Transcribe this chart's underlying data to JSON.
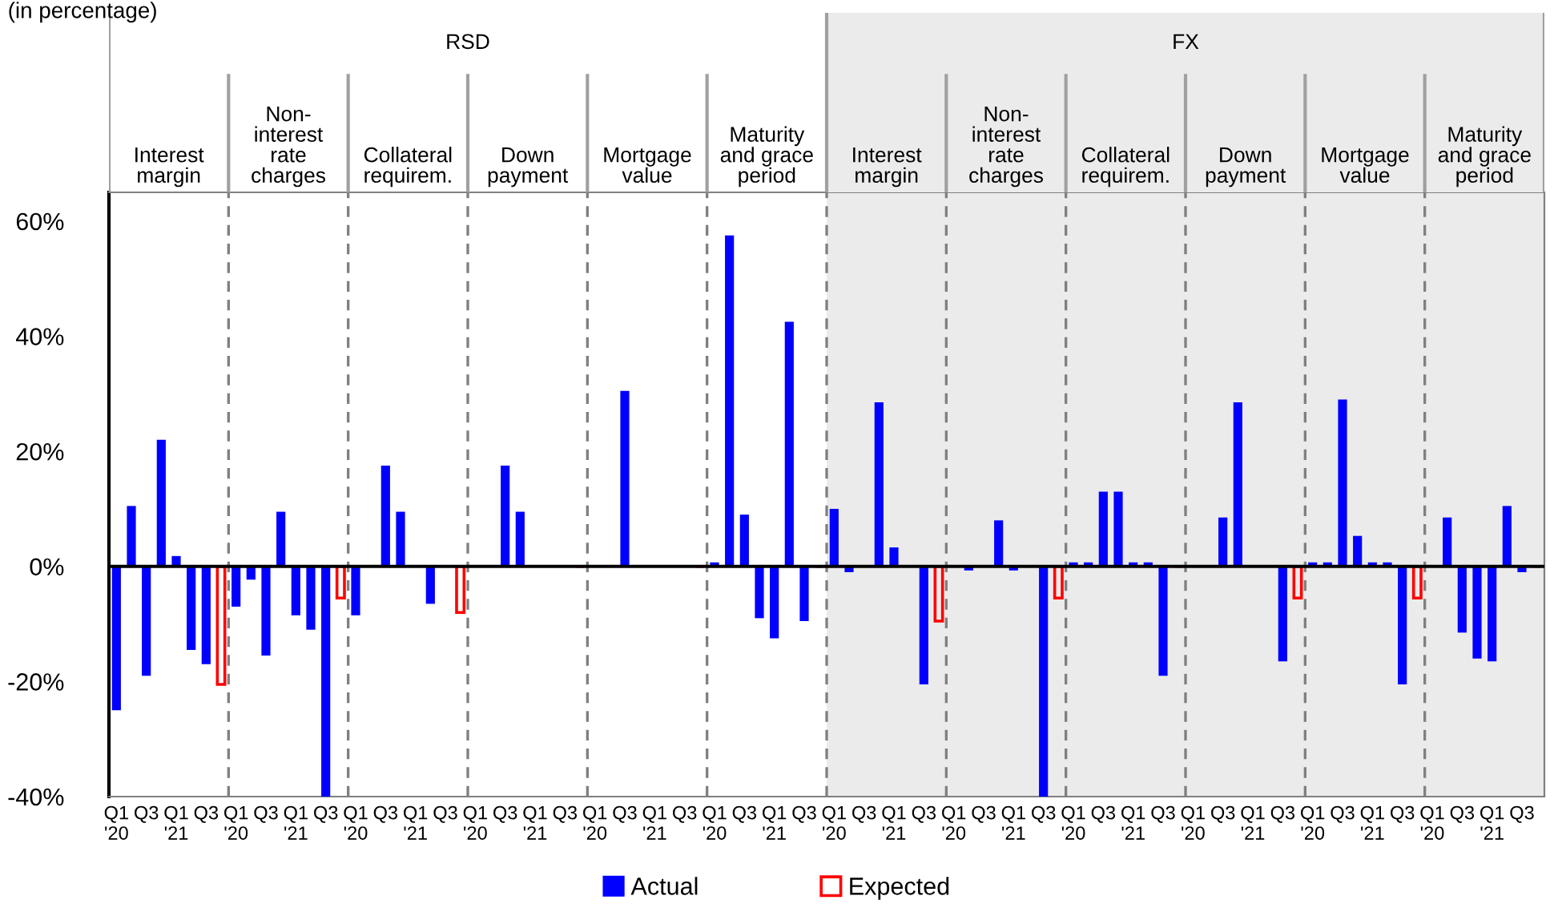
{
  "chart_data": {
    "type": "bar",
    "annotations": [
      "(in percentage)",
      "RSD",
      "FX",
      "Interest\nmargin",
      "Non-\ninterest\nrate\ncharges",
      "Collateral\nrequirem.",
      "Down\npayment",
      "Mortgage\nvalue",
      "Maturity\nand grace\nperiod",
      "Interest\nmargin",
      "Non-\ninterest\nrate\ncharges",
      "Collateral\nrequirem.",
      "Down\npayment",
      "Mortgage\nvalue",
      "Maturity\nand grace\nperiod"
    ],
    "categories": [
      "Q1\n'20",
      null,
      "Q3",
      null,
      "Q1\n'21",
      null,
      "Q3",
      null,
      "Q1\n'20",
      null,
      "Q3",
      null,
      "Q1\n'21",
      null,
      "Q3",
      null,
      "Q1\n'20",
      null,
      "Q3",
      null,
      "Q1\n'21",
      null,
      "Q3",
      null,
      "Q1\n'20",
      null,
      "Q3",
      null,
      "Q1\n'21",
      null,
      "Q3",
      null,
      "Q1\n'20",
      null,
      "Q3",
      null,
      "Q1\n'21",
      null,
      "Q3",
      null,
      "Q1\n'20",
      null,
      "Q3",
      null,
      "Q1\n'21",
      null,
      "Q3",
      null,
      "Q1\n'20",
      null,
      "Q3",
      null,
      "Q1\n'21",
      null,
      "Q3",
      null,
      "Q1\n'20",
      null,
      "Q3",
      null,
      "Q1\n'21",
      null,
      "Q3",
      null,
      "Q1\n'20",
      null,
      "Q3",
      null,
      "Q1\n'21",
      null,
      "Q3",
      null,
      "Q1\n'20",
      null,
      "Q3",
      null,
      "Q1\n'21",
      null,
      "Q3",
      null,
      "Q1\n'20",
      null,
      "Q3",
      null,
      "Q1\n'21",
      null,
      "Q3",
      null,
      "Q1\n'20",
      null,
      "Q3",
      null,
      "Q1\n'21",
      null,
      "Q3",
      null
    ],
    "series": [
      {
        "name": "Actual",
        "color": "#0000ff",
        "values": [
          -25,
          10.5,
          -19,
          22,
          1.8,
          -14.5,
          -17,
          null,
          -7,
          -2.3,
          -15.5,
          9.5,
          -8.5,
          -11,
          -40,
          null,
          -8.5,
          0,
          17.5,
          9.5,
          0,
          -6.5,
          0,
          null,
          0,
          0,
          17.5,
          9.5,
          0,
          0,
          0,
          null,
          0,
          0,
          30.5,
          0,
          0,
          0,
          0,
          null,
          0.7,
          57.5,
          9,
          -9,
          -12.5,
          42.5,
          -9.5,
          null,
          10,
          -1,
          0,
          28.5,
          3.3,
          0,
          -20.5,
          null,
          0,
          -0.7,
          0,
          8,
          -0.7,
          0,
          -40,
          null,
          0.7,
          0.7,
          13,
          13,
          0.7,
          0.7,
          -19,
          null,
          0,
          0,
          8.5,
          28.5,
          0,
          0,
          -16.5,
          null,
          0.7,
          0.7,
          29,
          5.3,
          0.7,
          0.7,
          -20.5,
          null,
          0,
          8.5,
          -11.5,
          -16,
          -16.5,
          10.5,
          -1,
          null
        ]
      },
      {
        "name": "Expected",
        "color": "#ff0000",
        "values": [
          null,
          null,
          null,
          null,
          null,
          null,
          null,
          -20.5,
          null,
          null,
          null,
          null,
          null,
          null,
          null,
          -5.5,
          null,
          null,
          null,
          null,
          null,
          null,
          null,
          -8,
          null,
          null,
          null,
          null,
          null,
          null,
          null,
          0,
          null,
          null,
          null,
          null,
          null,
          null,
          null,
          0,
          null,
          null,
          null,
          null,
          null,
          null,
          null,
          0,
          null,
          null,
          null,
          null,
          null,
          null,
          null,
          -9.5,
          null,
          null,
          null,
          null,
          null,
          null,
          null,
          -5.5,
          null,
          null,
          null,
          null,
          null,
          null,
          null,
          0,
          null,
          null,
          null,
          null,
          null,
          null,
          null,
          -5.5,
          null,
          null,
          null,
          null,
          null,
          null,
          null,
          -5.5,
          null,
          null,
          null,
          null,
          null,
          null,
          null,
          0
        ]
      }
    ],
    "ylim": [
      -40,
      65
    ],
    "yticks": [
      {
        "value": -40,
        "label": "-40%"
      },
      {
        "value": -20,
        "label": "-20%"
      },
      {
        "value": 0,
        "label": "0%"
      },
      {
        "value": 20,
        "label": "20%"
      },
      {
        "value": 40,
        "label": "40%"
      },
      {
        "value": 60,
        "label": "60%"
      }
    ],
    "grid": false,
    "legend": "bottom"
  }
}
